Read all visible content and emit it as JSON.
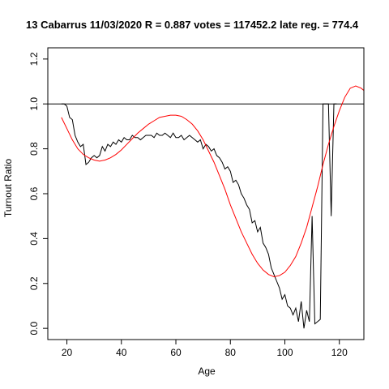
{
  "chart_data": {
    "type": "line",
    "title": "13 Cabarrus 11/03/2020 R = 0.887 votes = 117452.2 late reg. = 774.4",
    "xlabel": "Age",
    "ylabel": "Turnout Ratio",
    "xlim": [
      13,
      129
    ],
    "ylim": [
      -0.05,
      1.25
    ],
    "x_ticks": [
      20,
      40,
      60,
      80,
      100,
      120
    ],
    "y_ticks": [
      0.0,
      0.2,
      0.4,
      0.6,
      0.8,
      1.0,
      1.2
    ],
    "x_tick_labels": [
      "20",
      "40",
      "60",
      "80",
      "100",
      "120"
    ],
    "y_tick_labels": [
      "0.0",
      "0.2",
      "0.4",
      "0.6",
      "0.8",
      "1.0",
      "1.2"
    ],
    "reference_line": {
      "y": 1.0,
      "color": "#000000"
    },
    "grid": false,
    "series": [
      {
        "color": "#000000",
        "points": [
          [
            18,
            1.0
          ],
          [
            19,
            1.0
          ],
          [
            20,
            0.99
          ],
          [
            21,
            0.94
          ],
          [
            22,
            0.93
          ],
          [
            23,
            0.86
          ],
          [
            24,
            0.83
          ],
          [
            25,
            0.81
          ],
          [
            26,
            0.82
          ],
          [
            27,
            0.73
          ],
          [
            28,
            0.74
          ],
          [
            29,
            0.76
          ],
          [
            30,
            0.77
          ],
          [
            31,
            0.76
          ],
          [
            32,
            0.77
          ],
          [
            33,
            0.81
          ],
          [
            34,
            0.79
          ],
          [
            35,
            0.82
          ],
          [
            36,
            0.81
          ],
          [
            37,
            0.83
          ],
          [
            38,
            0.82
          ],
          [
            39,
            0.84
          ],
          [
            40,
            0.83
          ],
          [
            41,
            0.85
          ],
          [
            42,
            0.84
          ],
          [
            43,
            0.84
          ],
          [
            44,
            0.86
          ],
          [
            45,
            0.85
          ],
          [
            46,
            0.85
          ],
          [
            47,
            0.84
          ],
          [
            48,
            0.85
          ],
          [
            49,
            0.86
          ],
          [
            50,
            0.86
          ],
          [
            51,
            0.86
          ],
          [
            52,
            0.85
          ],
          [
            53,
            0.87
          ],
          [
            54,
            0.86
          ],
          [
            55,
            0.86
          ],
          [
            56,
            0.87
          ],
          [
            57,
            0.86
          ],
          [
            58,
            0.85
          ],
          [
            59,
            0.87
          ],
          [
            60,
            0.85
          ],
          [
            61,
            0.85
          ],
          [
            62,
            0.86
          ],
          [
            63,
            0.84
          ],
          [
            64,
            0.85
          ],
          [
            65,
            0.86
          ],
          [
            66,
            0.85
          ],
          [
            67,
            0.84
          ],
          [
            68,
            0.83
          ],
          [
            69,
            0.84
          ],
          [
            70,
            0.8
          ],
          [
            71,
            0.82
          ],
          [
            72,
            0.81
          ],
          [
            73,
            0.79
          ],
          [
            74,
            0.8
          ],
          [
            75,
            0.77
          ],
          [
            76,
            0.76
          ],
          [
            77,
            0.74
          ],
          [
            78,
            0.71
          ],
          [
            79,
            0.72
          ],
          [
            80,
            0.7
          ],
          [
            81,
            0.65
          ],
          [
            82,
            0.66
          ],
          [
            83,
            0.64
          ],
          [
            84,
            0.6
          ],
          [
            85,
            0.58
          ],
          [
            86,
            0.55
          ],
          [
            87,
            0.53
          ],
          [
            88,
            0.47
          ],
          [
            89,
            0.48
          ],
          [
            90,
            0.43
          ],
          [
            91,
            0.45
          ],
          [
            92,
            0.38
          ],
          [
            93,
            0.36
          ],
          [
            94,
            0.33
          ],
          [
            95,
            0.27
          ],
          [
            96,
            0.24
          ],
          [
            97,
            0.21
          ],
          [
            98,
            0.18
          ],
          [
            99,
            0.13
          ],
          [
            100,
            0.15
          ],
          [
            101,
            0.1
          ],
          [
            102,
            0.09
          ],
          [
            103,
            0.06
          ],
          [
            104,
            0.09
          ],
          [
            105,
            0.03
          ],
          [
            106,
            0.12
          ],
          [
            107,
            0.0
          ],
          [
            108,
            0.08
          ],
          [
            109,
            0.03
          ],
          [
            110,
            0.5
          ],
          [
            111,
            0.02
          ],
          [
            112,
            0.03
          ],
          [
            113,
            0.04
          ],
          [
            114,
            1.0
          ],
          [
            115,
            1.0
          ],
          [
            116,
            1.0
          ],
          [
            117,
            0.5
          ],
          [
            118,
            1.0
          ],
          [
            119,
            1.0
          ]
        ]
      },
      {
        "color": "#ff0000",
        "points": [
          [
            18,
            0.94
          ],
          [
            20,
            0.89
          ],
          [
            22,
            0.84
          ],
          [
            24,
            0.8
          ],
          [
            26,
            0.775
          ],
          [
            28,
            0.76
          ],
          [
            30,
            0.75
          ],
          [
            32,
            0.745
          ],
          [
            34,
            0.75
          ],
          [
            36,
            0.76
          ],
          [
            38,
            0.775
          ],
          [
            40,
            0.795
          ],
          [
            42,
            0.82
          ],
          [
            44,
            0.845
          ],
          [
            46,
            0.87
          ],
          [
            48,
            0.89
          ],
          [
            50,
            0.91
          ],
          [
            52,
            0.925
          ],
          [
            54,
            0.94
          ],
          [
            56,
            0.945
          ],
          [
            58,
            0.95
          ],
          [
            60,
            0.95
          ],
          [
            62,
            0.945
          ],
          [
            64,
            0.93
          ],
          [
            66,
            0.91
          ],
          [
            68,
            0.88
          ],
          [
            70,
            0.84
          ],
          [
            72,
            0.79
          ],
          [
            74,
            0.74
          ],
          [
            76,
            0.68
          ],
          [
            78,
            0.62
          ],
          [
            80,
            0.55
          ],
          [
            82,
            0.49
          ],
          [
            84,
            0.43
          ],
          [
            86,
            0.38
          ],
          [
            88,
            0.33
          ],
          [
            90,
            0.29
          ],
          [
            92,
            0.26
          ],
          [
            94,
            0.24
          ],
          [
            96,
            0.23
          ],
          [
            98,
            0.235
          ],
          [
            100,
            0.25
          ],
          [
            102,
            0.28
          ],
          [
            104,
            0.32
          ],
          [
            106,
            0.38
          ],
          [
            108,
            0.45
          ],
          [
            110,
            0.54
          ],
          [
            112,
            0.63
          ],
          [
            114,
            0.73
          ],
          [
            116,
            0.82
          ],
          [
            118,
            0.9
          ],
          [
            120,
            0.97
          ],
          [
            122,
            1.03
          ],
          [
            124,
            1.07
          ],
          [
            126,
            1.08
          ],
          [
            128,
            1.07
          ],
          [
            129,
            1.06
          ]
        ]
      }
    ]
  }
}
